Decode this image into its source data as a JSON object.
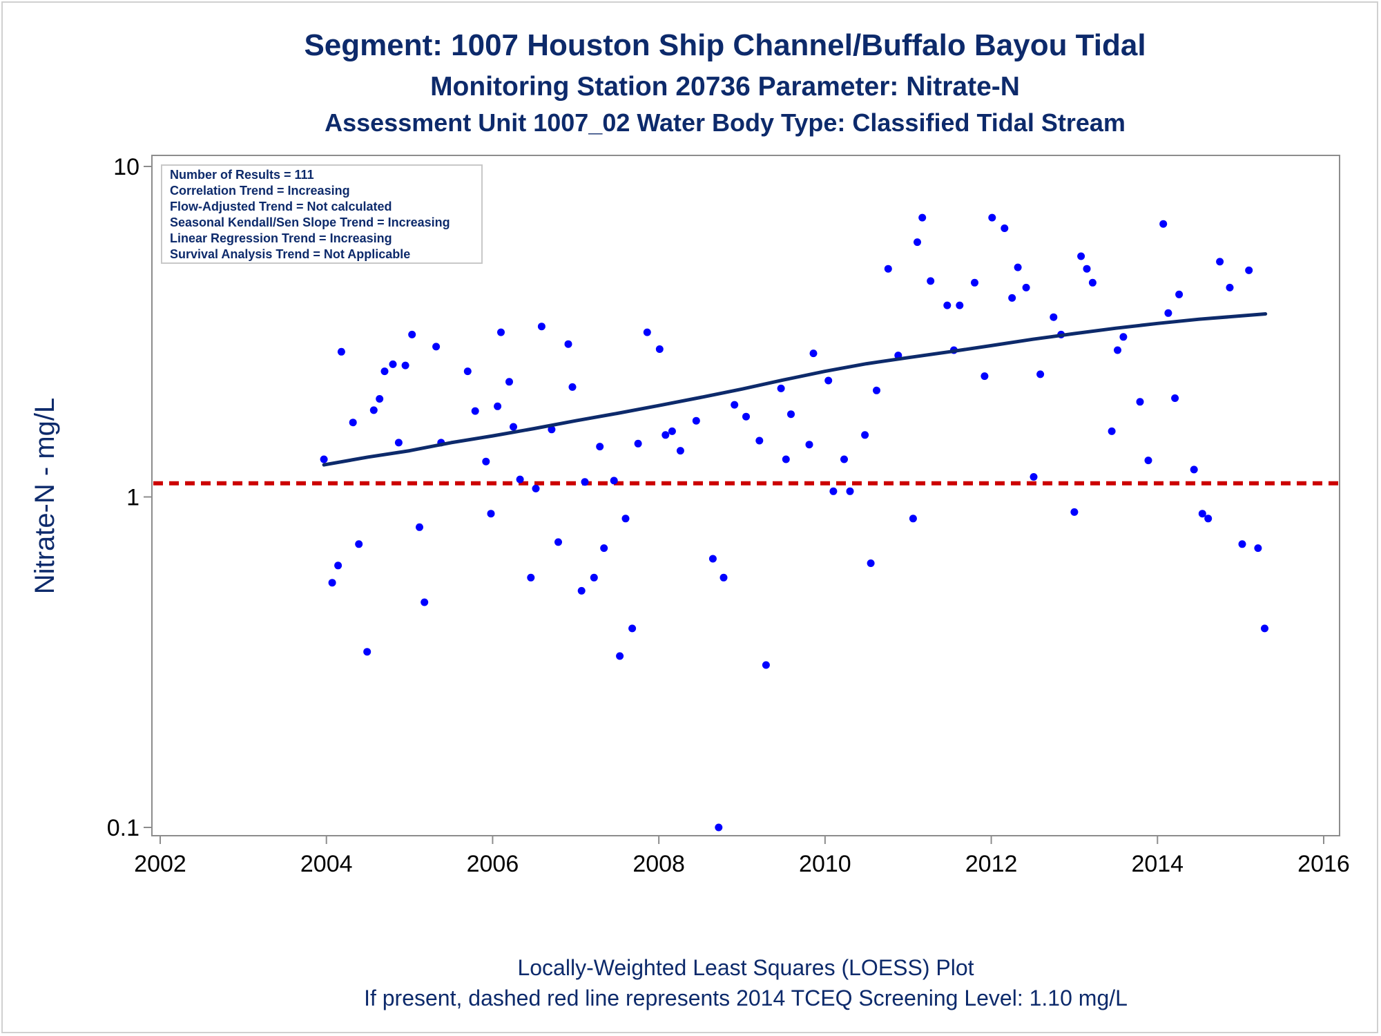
{
  "titles": {
    "line1": "Segment: 1007  Houston Ship Channel/Buffalo Bayou Tidal",
    "line2": "Monitoring Station 20736 Parameter: Nitrate-N",
    "line3": "Assessment Unit 1007_02   Water Body Type: Classified Tidal Stream"
  },
  "footnotes": {
    "line1": "Locally-Weighted Least Squares (LOESS) Plot",
    "line2": "If present, dashed red line represents 2014 TCEQ Screening Level: 1.10 mg/L"
  },
  "info_box": [
    "Number of Results = 111",
    "Correlation Trend = Increasing",
    "Flow-Adjusted Trend = Not calculated",
    "Seasonal Kendall/Sen Slope Trend = Increasing",
    "Linear Regression Trend = Increasing",
    "Survival Analysis Trend = Not Applicable"
  ],
  "colors": {
    "points": "#0000ff",
    "trend": "#0d2a6b",
    "screening": "#cc0000",
    "text": "#0d2a6b"
  },
  "chart_data": {
    "type": "scatter",
    "ylabel": "Nitrate-N - mg/L",
    "xlabel": "",
    "xlim": [
      2002,
      2016
    ],
    "ylim": [
      0.1,
      10
    ],
    "y_scale": "log",
    "x_ticks": [
      "2002",
      "2004",
      "2006",
      "2008",
      "2010",
      "2012",
      "2014",
      "2016"
    ],
    "y_ticks": [
      "0.1",
      "1",
      "10"
    ],
    "grid": false,
    "screening_level": 1.1,
    "points": [
      [
        2003.97,
        1.3
      ],
      [
        2004.07,
        0.55
      ],
      [
        2004.14,
        0.62
      ],
      [
        2004.18,
        2.75
      ],
      [
        2004.32,
        1.68
      ],
      [
        2004.39,
        0.72
      ],
      [
        2004.49,
        0.34
      ],
      [
        2004.57,
        1.83
      ],
      [
        2004.64,
        1.98
      ],
      [
        2004.7,
        2.4
      ],
      [
        2004.8,
        2.52
      ],
      [
        2004.87,
        1.46
      ],
      [
        2004.95,
        2.5
      ],
      [
        2005.03,
        3.1
      ],
      [
        2005.12,
        0.81
      ],
      [
        2005.18,
        0.48
      ],
      [
        2005.32,
        2.85
      ],
      [
        2005.38,
        1.46
      ],
      [
        2005.7,
        2.4
      ],
      [
        2005.79,
        1.82
      ],
      [
        2005.92,
        1.28
      ],
      [
        2005.98,
        0.89
      ],
      [
        2006.06,
        1.88
      ],
      [
        2006.1,
        3.15
      ],
      [
        2006.2,
        2.23
      ],
      [
        2006.25,
        1.63
      ],
      [
        2006.33,
        1.13
      ],
      [
        2006.46,
        0.57
      ],
      [
        2006.52,
        1.06
      ],
      [
        2006.59,
        3.28
      ],
      [
        2006.71,
        1.6
      ],
      [
        2006.79,
        0.73
      ],
      [
        2006.91,
        2.9
      ],
      [
        2006.96,
        2.15
      ],
      [
        2007.07,
        0.52
      ],
      [
        2007.11,
        1.11
      ],
      [
        2007.22,
        0.57
      ],
      [
        2007.29,
        1.42
      ],
      [
        2007.34,
        0.7
      ],
      [
        2007.46,
        1.12
      ],
      [
        2007.53,
        0.33
      ],
      [
        2007.6,
        0.86
      ],
      [
        2007.68,
        0.4
      ],
      [
        2007.75,
        1.45
      ],
      [
        2007.86,
        3.15
      ],
      [
        2008.01,
        2.8
      ],
      [
        2008.08,
        1.54
      ],
      [
        2008.16,
        1.58
      ],
      [
        2008.26,
        1.38
      ],
      [
        2008.45,
        1.7
      ],
      [
        2008.65,
        0.65
      ],
      [
        2008.72,
        0.1
      ],
      [
        2008.78,
        0.57
      ],
      [
        2008.91,
        1.9
      ],
      [
        2009.05,
        1.75
      ],
      [
        2009.21,
        1.48
      ],
      [
        2009.29,
        0.31
      ],
      [
        2009.47,
        2.13
      ],
      [
        2009.53,
        1.3
      ],
      [
        2009.59,
        1.78
      ],
      [
        2009.81,
        1.44
      ],
      [
        2009.86,
        2.72
      ],
      [
        2010.04,
        2.25
      ],
      [
        2010.1,
        1.04
      ],
      [
        2010.23,
        1.3
      ],
      [
        2010.3,
        1.04
      ],
      [
        2010.48,
        1.54
      ],
      [
        2010.55,
        0.63
      ],
      [
        2010.62,
        2.1
      ],
      [
        2010.76,
        4.9
      ],
      [
        2010.88,
        2.68
      ],
      [
        2011.06,
        0.86
      ],
      [
        2011.11,
        5.9
      ],
      [
        2011.17,
        7.0
      ],
      [
        2011.27,
        4.5
      ],
      [
        2011.47,
        3.8
      ],
      [
        2011.55,
        2.78
      ],
      [
        2011.62,
        3.8
      ],
      [
        2011.8,
        4.45
      ],
      [
        2011.92,
        2.32
      ],
      [
        2012.01,
        7.0
      ],
      [
        2012.16,
        6.5
      ],
      [
        2012.25,
        4.0
      ],
      [
        2012.32,
        4.95
      ],
      [
        2012.42,
        4.3
      ],
      [
        2012.51,
        1.15
      ],
      [
        2012.59,
        2.35
      ],
      [
        2012.75,
        3.5
      ],
      [
        2012.84,
        3.1
      ],
      [
        2013.0,
        0.9
      ],
      [
        2013.08,
        5.35
      ],
      [
        2013.15,
        4.9
      ],
      [
        2013.22,
        4.45
      ],
      [
        2013.45,
        1.58
      ],
      [
        2013.52,
        2.78
      ],
      [
        2013.59,
        3.05
      ],
      [
        2013.79,
        1.94
      ],
      [
        2013.89,
        1.29
      ],
      [
        2014.07,
        6.7
      ],
      [
        2014.13,
        3.6
      ],
      [
        2014.21,
        1.99
      ],
      [
        2014.26,
        4.1
      ],
      [
        2014.44,
        1.21
      ],
      [
        2014.54,
        0.89
      ],
      [
        2014.61,
        0.86
      ],
      [
        2014.75,
        5.15
      ],
      [
        2014.87,
        4.3
      ],
      [
        2015.02,
        0.72
      ],
      [
        2015.1,
        4.85
      ],
      [
        2015.21,
        0.7
      ],
      [
        2015.29,
        0.4
      ]
    ],
    "series": [
      {
        "type": "line",
        "points": [
          [
            2003.97,
            1.25
          ],
          [
            2004.5,
            1.32
          ],
          [
            2005.0,
            1.38
          ],
          [
            2005.5,
            1.46
          ],
          [
            2006.0,
            1.53
          ],
          [
            2006.5,
            1.61
          ],
          [
            2007.0,
            1.7
          ],
          [
            2007.5,
            1.79
          ],
          [
            2008.0,
            1.89
          ],
          [
            2008.5,
            2.0
          ],
          [
            2009.0,
            2.12
          ],
          [
            2009.5,
            2.26
          ],
          [
            2010.0,
            2.4
          ],
          [
            2010.5,
            2.53
          ],
          [
            2011.0,
            2.64
          ],
          [
            2011.5,
            2.75
          ],
          [
            2012.0,
            2.87
          ],
          [
            2012.5,
            3.0
          ],
          [
            2013.0,
            3.12
          ],
          [
            2013.5,
            3.24
          ],
          [
            2014.0,
            3.35
          ],
          [
            2014.5,
            3.45
          ],
          [
            2015.0,
            3.53
          ],
          [
            2015.3,
            3.58
          ]
        ]
      }
    ]
  }
}
